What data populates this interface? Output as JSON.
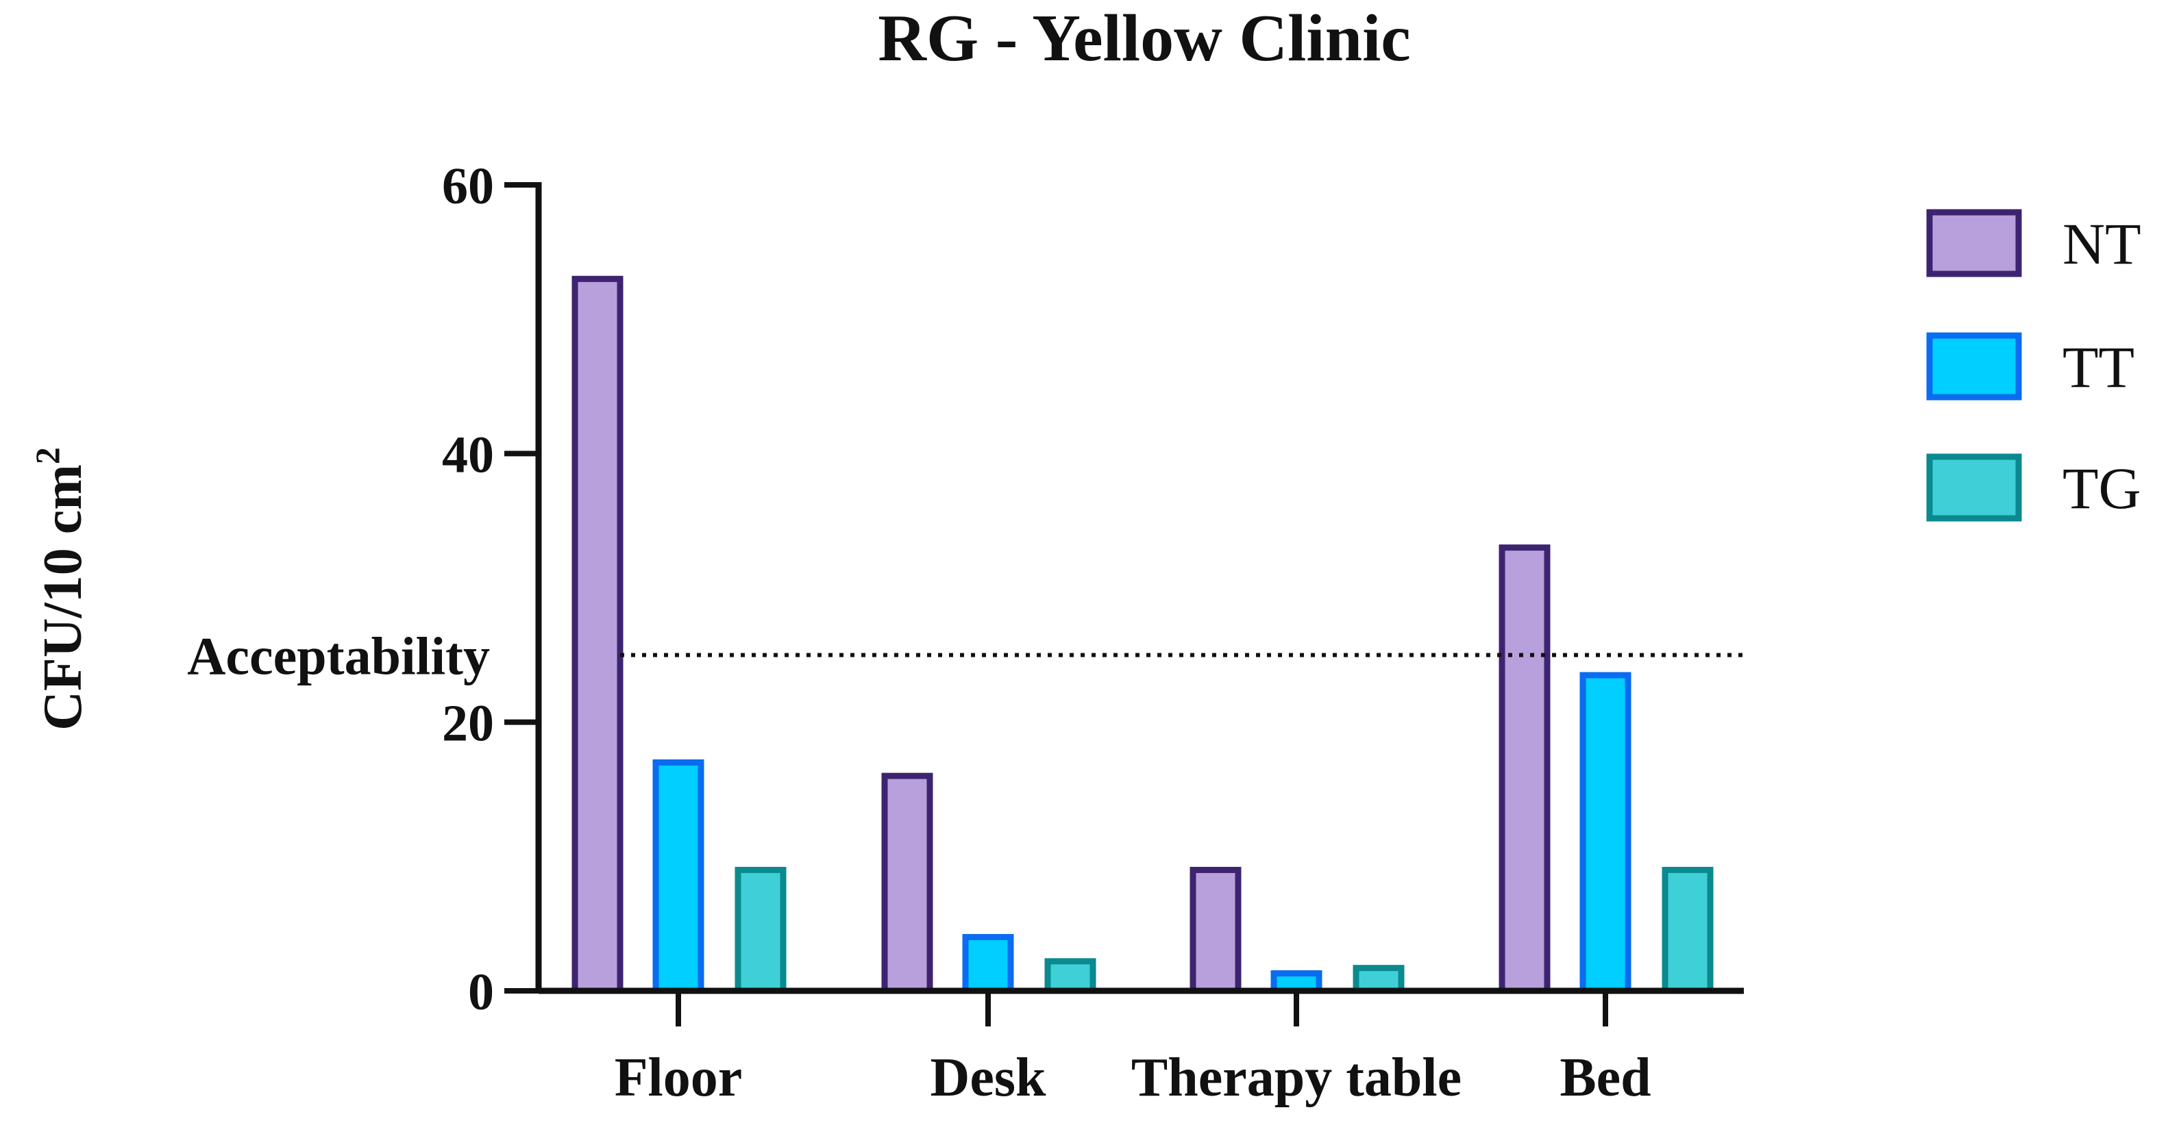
{
  "chart_data": {
    "type": "bar",
    "title": "RG - Yellow Clinic",
    "ylabel": "CFU/10 cm",
    "ylabel_superscript": "2",
    "xlabel": "",
    "categories": [
      "Floor",
      "Desk",
      "Therapy table",
      "Bed"
    ],
    "series": [
      {
        "name": "NT",
        "values": [
          53,
          16,
          9,
          33
        ],
        "fill": "#b8a0dc",
        "stroke": "#3d2470"
      },
      {
        "name": "TT",
        "values": [
          17,
          4,
          1.3,
          23.5
        ],
        "fill": "#00cfff",
        "stroke": "#0a6cf0"
      },
      {
        "name": "TG",
        "values": [
          9,
          2.2,
          1.7,
          9
        ],
        "fill": "#3ed0d6",
        "stroke": "#0a8a8e"
      }
    ],
    "ylim": [
      0,
      60
    ],
    "yticks": [
      0,
      20,
      40,
      60
    ],
    "reference_line": {
      "label": "Acceptability",
      "value": 25
    },
    "grid": false,
    "legend": "right"
  }
}
